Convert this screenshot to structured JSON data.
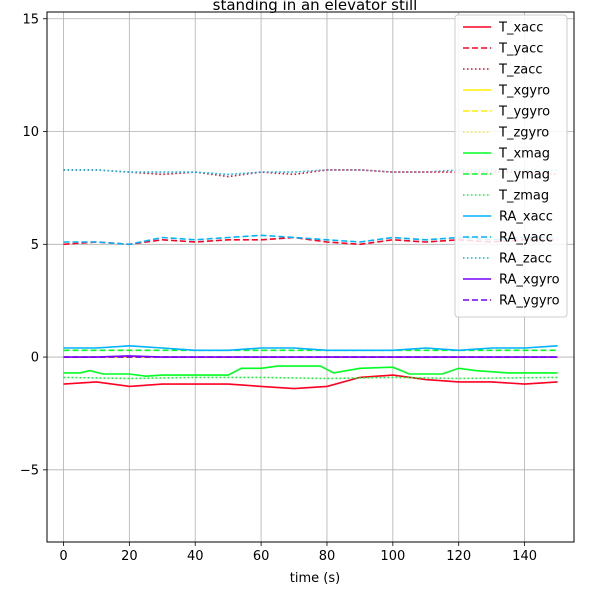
{
  "chart_data": {
    "type": "line",
    "title": "standing in an elevator still",
    "xlabel": "time (s)",
    "ylabel": "",
    "xlim": [
      -5,
      155
    ],
    "ylim": [
      -8.2,
      15.3
    ],
    "xticks": [
      0,
      20,
      40,
      60,
      80,
      100,
      120,
      140
    ],
    "yticks": [
      -5,
      0,
      5,
      10,
      15
    ],
    "grid": true,
    "legend_position": "top-right",
    "series": [
      {
        "name": "T_xacc",
        "color": "#ff0022",
        "dash": "solid",
        "points": [
          [
            0,
            -1.2
          ],
          [
            10,
            -1.1
          ],
          [
            20,
            -1.3
          ],
          [
            30,
            -1.2
          ],
          [
            40,
            -1.2
          ],
          [
            50,
            -1.2
          ],
          [
            60,
            -1.3
          ],
          [
            70,
            -1.4
          ],
          [
            80,
            -1.3
          ],
          [
            90,
            -0.9
          ],
          [
            100,
            -0.8
          ],
          [
            110,
            -1.0
          ],
          [
            120,
            -1.1
          ],
          [
            130,
            -1.1
          ],
          [
            140,
            -1.2
          ],
          [
            150,
            -1.1
          ]
        ]
      },
      {
        "name": "T_yacc",
        "color": "#ff0022",
        "dash": "dashed",
        "points": [
          [
            0,
            5.0
          ],
          [
            10,
            5.1
          ],
          [
            20,
            5.0
          ],
          [
            30,
            5.2
          ],
          [
            40,
            5.1
          ],
          [
            50,
            5.2
          ],
          [
            60,
            5.2
          ],
          [
            70,
            5.3
          ],
          [
            80,
            5.1
          ],
          [
            90,
            5.0
          ],
          [
            100,
            5.2
          ],
          [
            110,
            5.1
          ],
          [
            120,
            5.2
          ],
          [
            130,
            5.1
          ],
          [
            140,
            5.2
          ],
          [
            150,
            5.2
          ]
        ]
      },
      {
        "name": "T_zacc",
        "color": "#ff0022",
        "dash": "dotted",
        "points": [
          [
            0,
            8.3
          ],
          [
            10,
            8.3
          ],
          [
            20,
            8.2
          ],
          [
            30,
            8.1
          ],
          [
            40,
            8.2
          ],
          [
            50,
            8.0
          ],
          [
            60,
            8.2
          ],
          [
            70,
            8.1
          ],
          [
            80,
            8.3
          ],
          [
            90,
            8.3
          ],
          [
            100,
            8.2
          ],
          [
            110,
            8.2
          ],
          [
            120,
            8.2
          ],
          [
            130,
            8.2
          ],
          [
            140,
            8.2
          ],
          [
            150,
            8.1
          ]
        ]
      },
      {
        "name": "T_xgyro",
        "color": "#ffee00",
        "dash": "solid",
        "points": [
          [
            0,
            0.0
          ],
          [
            150,
            0.0
          ]
        ]
      },
      {
        "name": "T_ygyro",
        "color": "#ffee00",
        "dash": "dashed",
        "points": [
          [
            0,
            0.0
          ],
          [
            150,
            0.0
          ]
        ]
      },
      {
        "name": "T_zgyro",
        "color": "#ffee00",
        "dash": "dotted",
        "points": [
          [
            0,
            0.0
          ],
          [
            150,
            0.0
          ]
        ]
      },
      {
        "name": "T_xmag",
        "color": "#00ff22",
        "dash": "solid",
        "points": [
          [
            0,
            -0.7
          ],
          [
            5,
            -0.7
          ],
          [
            8,
            -0.6
          ],
          [
            12,
            -0.75
          ],
          [
            20,
            -0.75
          ],
          [
            25,
            -0.85
          ],
          [
            30,
            -0.8
          ],
          [
            40,
            -0.8
          ],
          [
            50,
            -0.8
          ],
          [
            54,
            -0.5
          ],
          [
            60,
            -0.5
          ],
          [
            65,
            -0.4
          ],
          [
            78,
            -0.4
          ],
          [
            82,
            -0.7
          ],
          [
            90,
            -0.5
          ],
          [
            100,
            -0.45
          ],
          [
            105,
            -0.75
          ],
          [
            115,
            -0.75
          ],
          [
            120,
            -0.5
          ],
          [
            125,
            -0.6
          ],
          [
            135,
            -0.7
          ],
          [
            150,
            -0.7
          ]
        ]
      },
      {
        "name": "T_ymag",
        "color": "#00ff22",
        "dash": "dashed",
        "points": [
          [
            0,
            0.3
          ],
          [
            20,
            0.3
          ],
          [
            40,
            0.3
          ],
          [
            60,
            0.3
          ],
          [
            80,
            0.3
          ],
          [
            100,
            0.3
          ],
          [
            120,
            0.3
          ],
          [
            150,
            0.3
          ]
        ]
      },
      {
        "name": "T_zmag",
        "color": "#00ff22",
        "dash": "dotted",
        "points": [
          [
            0,
            -0.9
          ],
          [
            20,
            -0.95
          ],
          [
            40,
            -0.9
          ],
          [
            60,
            -0.9
          ],
          [
            80,
            -0.95
          ],
          [
            100,
            -0.9
          ],
          [
            120,
            -0.95
          ],
          [
            150,
            -0.9
          ]
        ]
      },
      {
        "name": "RA_xacc",
        "color": "#00b2ff",
        "dash": "solid",
        "points": [
          [
            0,
            0.4
          ],
          [
            10,
            0.4
          ],
          [
            20,
            0.5
          ],
          [
            30,
            0.4
          ],
          [
            40,
            0.3
          ],
          [
            50,
            0.3
          ],
          [
            60,
            0.4
          ],
          [
            70,
            0.4
          ],
          [
            80,
            0.3
          ],
          [
            90,
            0.3
          ],
          [
            100,
            0.3
          ],
          [
            110,
            0.4
          ],
          [
            120,
            0.3
          ],
          [
            130,
            0.4
          ],
          [
            140,
            0.4
          ],
          [
            150,
            0.5
          ]
        ]
      },
      {
        "name": "RA_yacc",
        "color": "#00b2ff",
        "dash": "dashed",
        "points": [
          [
            0,
            5.1
          ],
          [
            10,
            5.1
          ],
          [
            20,
            5.0
          ],
          [
            30,
            5.3
          ],
          [
            40,
            5.2
          ],
          [
            50,
            5.3
          ],
          [
            60,
            5.4
          ],
          [
            70,
            5.3
          ],
          [
            80,
            5.2
          ],
          [
            90,
            5.1
          ],
          [
            100,
            5.3
          ],
          [
            110,
            5.2
          ],
          [
            120,
            5.3
          ],
          [
            130,
            5.2
          ],
          [
            140,
            5.3
          ],
          [
            150,
            5.3
          ]
        ]
      },
      {
        "name": "RA_zacc",
        "color": "#00b2ff",
        "dash": "dotted",
        "points": [
          [
            0,
            8.3
          ],
          [
            10,
            8.3
          ],
          [
            20,
            8.2
          ],
          [
            30,
            8.2
          ],
          [
            40,
            8.2
          ],
          [
            50,
            8.1
          ],
          [
            60,
            8.2
          ],
          [
            70,
            8.2
          ],
          [
            80,
            8.3
          ],
          [
            90,
            8.3
          ],
          [
            100,
            8.2
          ],
          [
            110,
            8.2
          ],
          [
            120,
            8.3
          ],
          [
            130,
            8.3
          ],
          [
            140,
            8.3
          ],
          [
            150,
            8.3
          ]
        ]
      },
      {
        "name": "RA_xgyro",
        "color": "#7700ff",
        "dash": "solid",
        "points": [
          [
            0,
            0.0
          ],
          [
            10,
            0.0
          ],
          [
            20,
            0.05
          ],
          [
            30,
            0.0
          ],
          [
            40,
            0.0
          ],
          [
            50,
            0.0
          ],
          [
            60,
            0.0
          ],
          [
            70,
            0.0
          ],
          [
            80,
            0.0
          ],
          [
            90,
            0.0
          ],
          [
            100,
            0.0
          ],
          [
            110,
            0.0
          ],
          [
            120,
            0.0
          ],
          [
            130,
            0.0
          ],
          [
            140,
            0.0
          ],
          [
            150,
            0.0
          ]
        ]
      },
      {
        "name": "RA_ygyro",
        "color": "#7700ff",
        "dash": "dashed",
        "points": [
          [
            0,
            0.0
          ],
          [
            20,
            0.0
          ],
          [
            40,
            0.0
          ],
          [
            60,
            0.0
          ],
          [
            80,
            0.0
          ],
          [
            100,
            0.0
          ],
          [
            120,
            0.0
          ],
          [
            150,
            0.0
          ]
        ]
      }
    ]
  }
}
